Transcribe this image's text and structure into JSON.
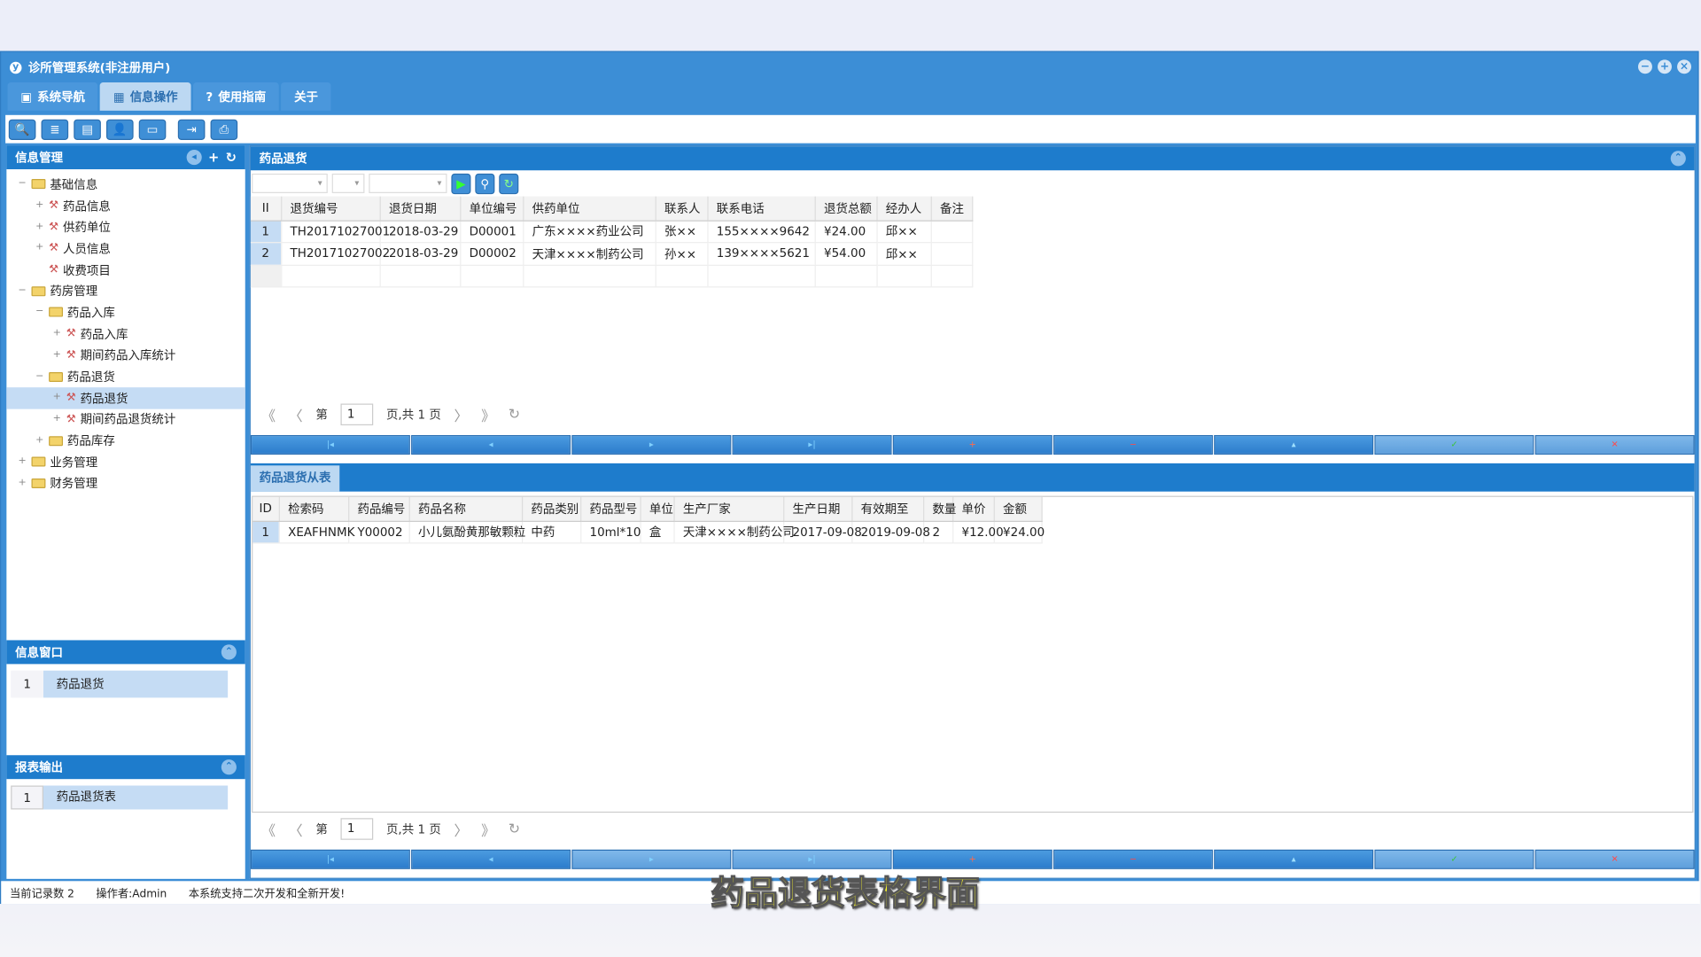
{
  "window": {
    "title": "诊所管理系统(非注册用户)",
    "logo": "y"
  },
  "menu_tabs": [
    {
      "label": "系统导航",
      "icon": "monitor-icon"
    },
    {
      "label": "信息操作",
      "icon": "grid-icon"
    },
    {
      "label": "使用指南",
      "icon": "help-icon"
    },
    {
      "label": "关于"
    }
  ],
  "toolbar": [
    "search-icon",
    "list-icon",
    "document-icon",
    "users-icon",
    "window-icon",
    "export-icon",
    "print-icon"
  ],
  "left": {
    "title": "信息管理",
    "tree": [
      {
        "label": "基础信息",
        "level": 0,
        "type": "folder",
        "exp": "−"
      },
      {
        "label": "药品信息",
        "level": 1,
        "type": "leaf",
        "exp": "+"
      },
      {
        "label": "供药单位",
        "level": 1,
        "type": "leaf",
        "exp": "+"
      },
      {
        "label": "人员信息",
        "level": 1,
        "type": "leaf",
        "exp": "+"
      },
      {
        "label": "收费项目",
        "level": 1,
        "type": "leaf",
        "exp": ""
      },
      {
        "label": "药房管理",
        "level": 0,
        "type": "folder",
        "exp": "−"
      },
      {
        "label": "药品入库",
        "level": 1,
        "type": "folder",
        "exp": "−"
      },
      {
        "label": "药品入库",
        "level": 2,
        "type": "leaf",
        "exp": "+"
      },
      {
        "label": "期间药品入库统计",
        "level": 2,
        "type": "leaf",
        "exp": "+"
      },
      {
        "label": "药品退货",
        "level": 1,
        "type": "folder",
        "exp": "−"
      },
      {
        "label": "药品退货",
        "level": 2,
        "type": "leaf",
        "exp": "+",
        "selected": true
      },
      {
        "label": "期间药品退货统计",
        "level": 2,
        "type": "leaf",
        "exp": "+"
      },
      {
        "label": "药品库存",
        "level": 1,
        "type": "folder",
        "exp": "+"
      },
      {
        "label": "业务管理",
        "level": 0,
        "type": "folder",
        "exp": "+"
      },
      {
        "label": "财务管理",
        "level": 0,
        "type": "folder",
        "exp": "+"
      }
    ],
    "window_panel": {
      "title": "信息窗口",
      "rows": [
        {
          "no": "1",
          "label": "药品退货"
        }
      ]
    },
    "report_panel": {
      "title": "报表输出",
      "rows": [
        {
          "no": "1",
          "label": "药品退货表"
        }
      ]
    }
  },
  "main": {
    "title": "药品退货",
    "columns": [
      "II",
      "退货编号",
      "退货日期",
      "单位编号",
      "供药单位",
      "联系人",
      "联系电话",
      "退货总额",
      "经办人",
      "备注"
    ],
    "rows": [
      [
        "1",
        "TH20171027001",
        "2018-03-29",
        "D00001",
        "广东××××药业公司",
        "张××",
        "155××××9642",
        "¥24.00",
        "邱××",
        ""
      ],
      [
        "2",
        "TH20171027002",
        "2018-03-29",
        "D00002",
        "天津××××制药公司",
        "孙××",
        "139××××5621",
        "¥54.00",
        "邱××",
        ""
      ]
    ],
    "pager": {
      "prefix": "第",
      "page": "1",
      "suffix": "页,共 1 页"
    }
  },
  "detail": {
    "tab": "药品退货从表",
    "columns": [
      "ID",
      "检索码",
      "药品编号",
      "药品名称",
      "药品类别",
      "药品型号",
      "单位",
      "生产厂家",
      "生产日期",
      "有效期至",
      "数量",
      "单价",
      "金额"
    ],
    "rows": [
      [
        "1",
        "XEAFHNMK",
        "Y00002",
        "小儿氨酚黄那敏颗粒",
        "中药",
        "10ml*10",
        "盒",
        "天津××××制药公司",
        "2017-09-08",
        "2019-09-08",
        "2",
        "¥12.00",
        "¥24.00"
      ]
    ],
    "pager": {
      "prefix": "第",
      "page": "1",
      "suffix": "页,共 1 页"
    }
  },
  "nav_buttons": [
    {
      "name": "first",
      "g": "|◂",
      "c": "#7fd0ff"
    },
    {
      "name": "prev",
      "g": "◂",
      "c": "#7fd0ff"
    },
    {
      "name": "next",
      "g": "▸",
      "c": "#7fd0ff"
    },
    {
      "name": "last",
      "g": "▸|",
      "c": "#7fd0ff"
    },
    {
      "name": "add",
      "g": "+",
      "c": "#ff6a4a"
    },
    {
      "name": "delete",
      "g": "−",
      "c": "#ff4a4a"
    },
    {
      "name": "edit",
      "g": "▴",
      "c": "#9ee0ff"
    },
    {
      "name": "save",
      "g": "✓",
      "c": "#3cc43c"
    },
    {
      "name": "cancel",
      "g": "✕",
      "c": "#ff4a4a"
    }
  ],
  "status": {
    "records": "当前记录数 2",
    "operator": "操作者:Admin",
    "note": "本系统支持二次开发和全新开发!"
  },
  "caption": "药品退货表格界面"
}
